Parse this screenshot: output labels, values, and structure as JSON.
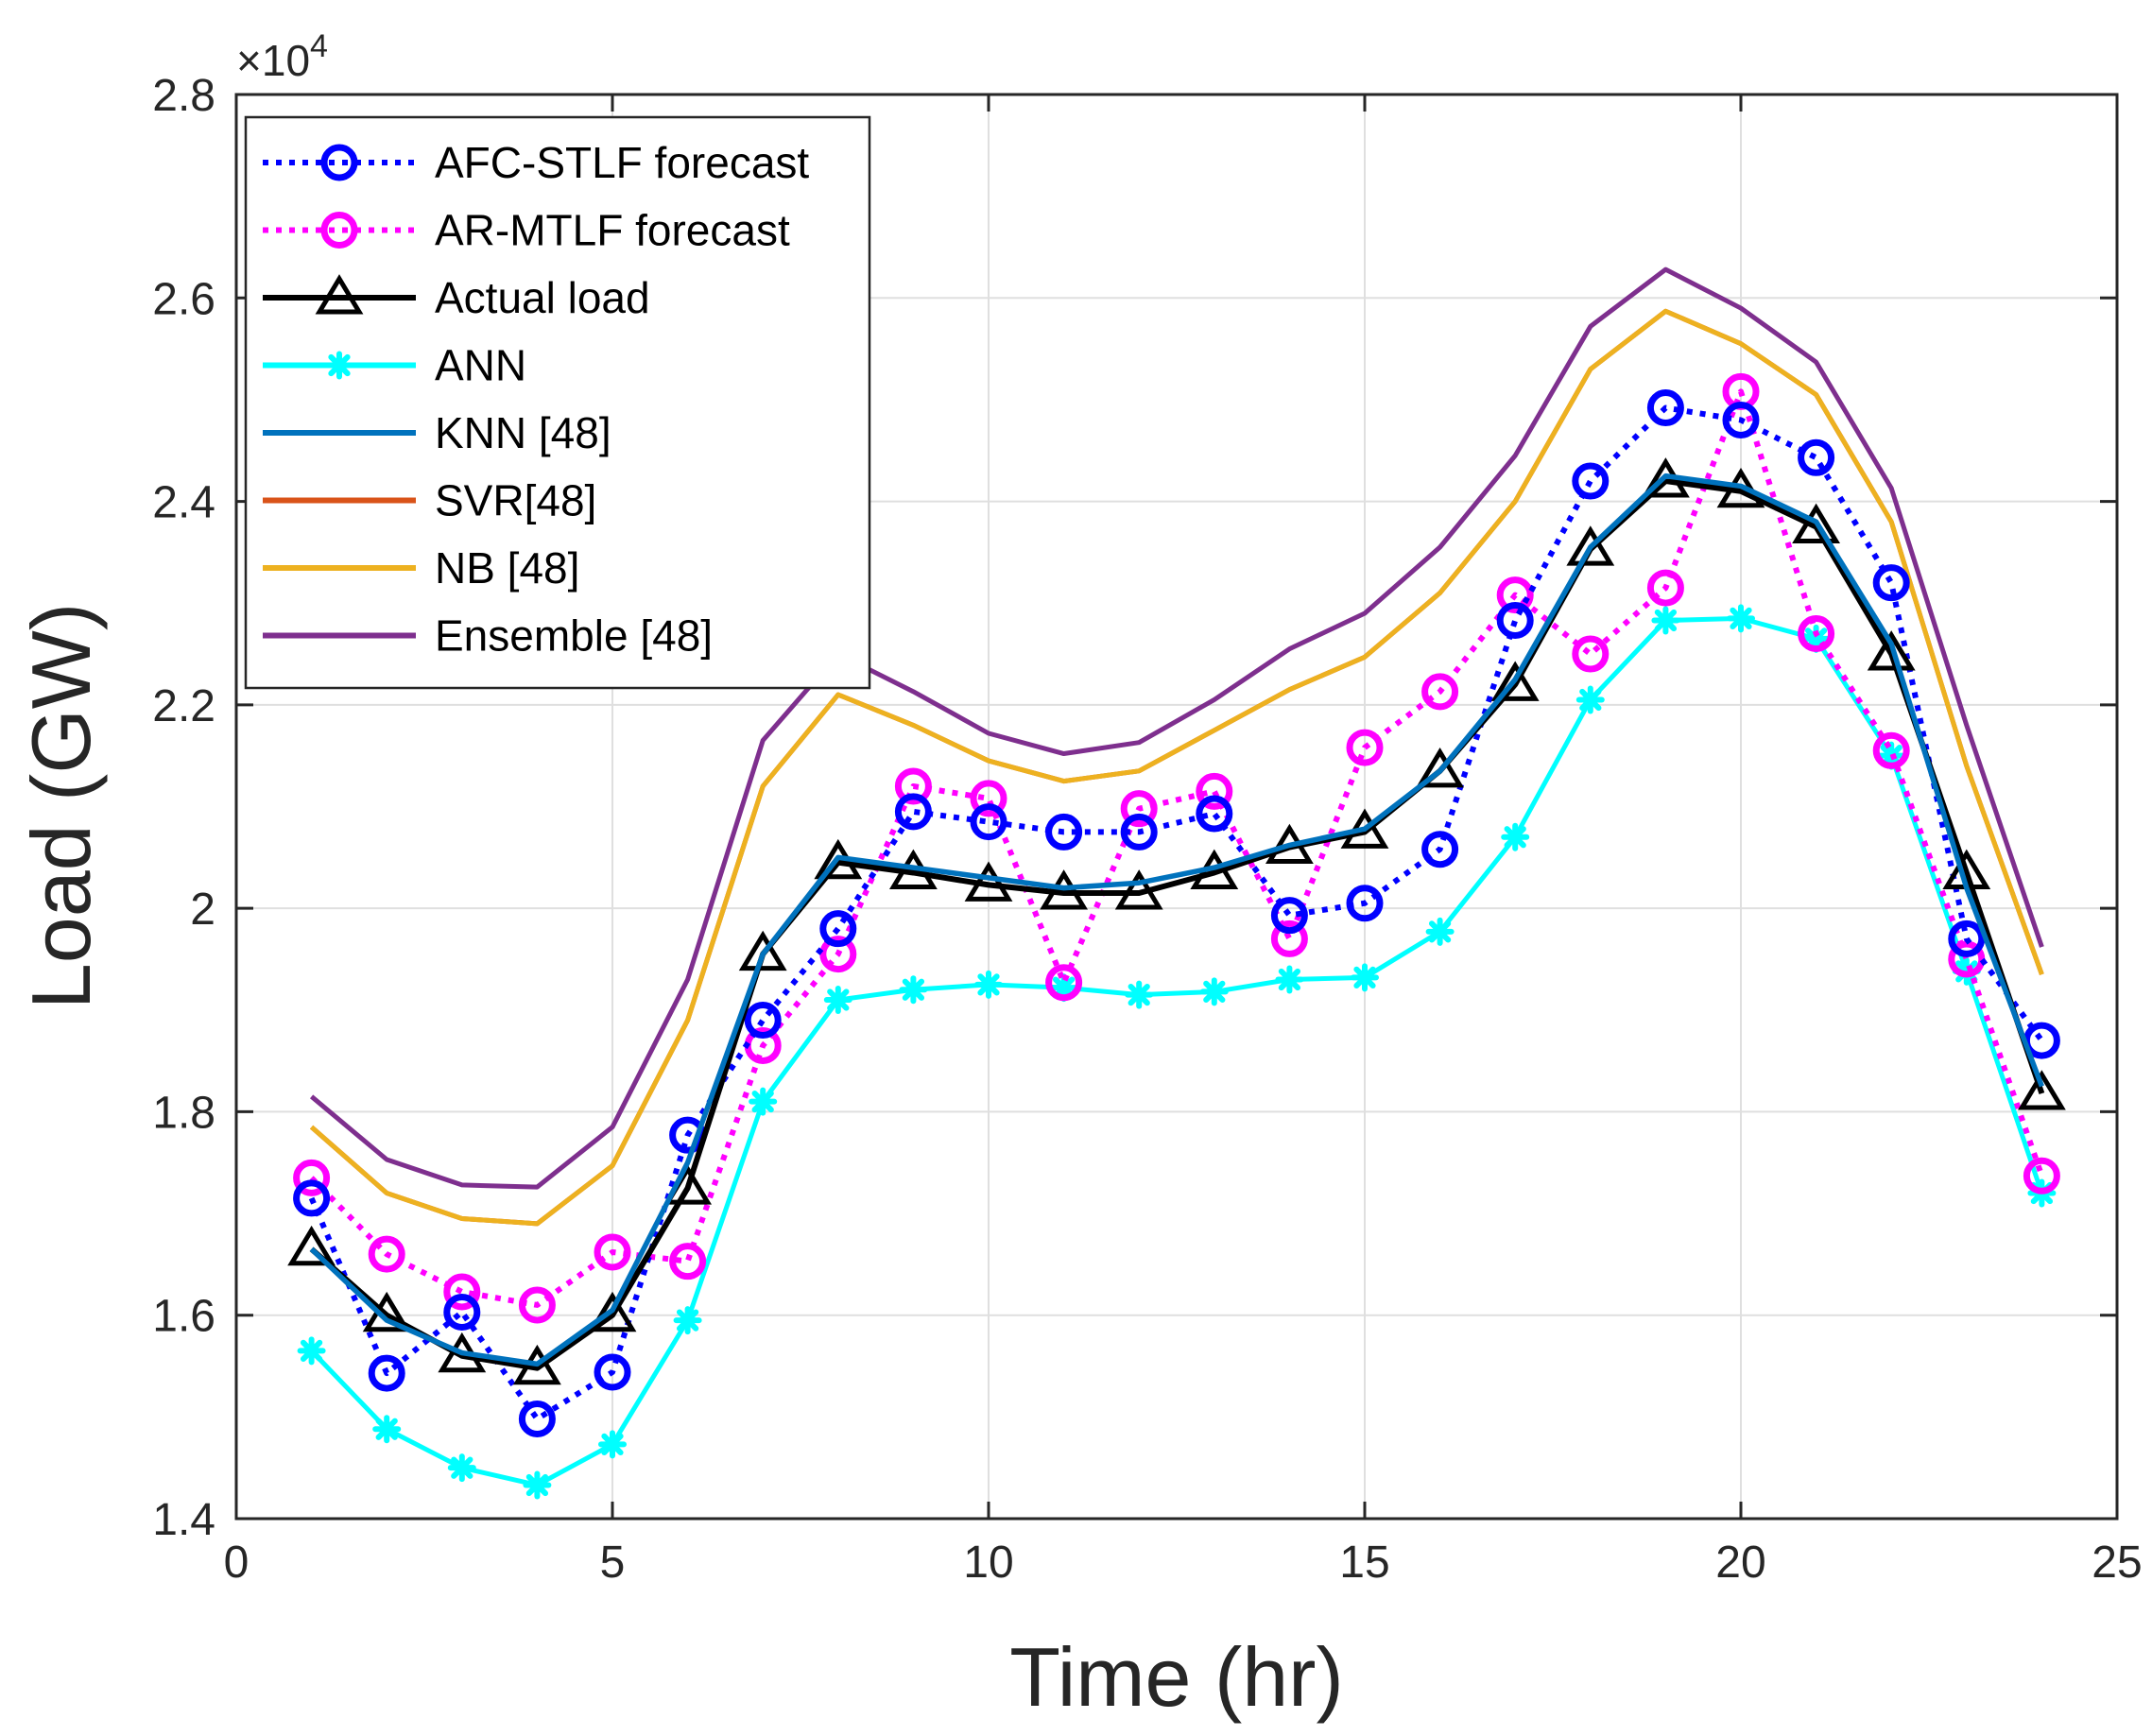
{
  "chart_data": {
    "type": "line",
    "xlabel": "Time (hr)",
    "ylabel": "Load (GW)",
    "y_exponent": "×10",
    "y_exponent_power": "4",
    "xlim": [
      0,
      25
    ],
    "ylim": [
      1.4,
      2.8
    ],
    "xticks": [
      0,
      5,
      10,
      15,
      20,
      25
    ],
    "xtick_labels": [
      "0",
      "5",
      "10",
      "15",
      "20",
      "25"
    ],
    "yticks": [
      1.4,
      1.6,
      1.8,
      2.0,
      2.2,
      2.4,
      2.6,
      2.8
    ],
    "ytick_labels": [
      "1.4",
      "1.6",
      "1.8",
      "2",
      "2.2",
      "2.4",
      "2.6",
      "2.8"
    ],
    "grid": true,
    "legend_position": "top-left",
    "x": [
      1,
      2,
      3,
      4,
      5,
      6,
      7,
      8,
      9,
      10,
      11,
      12,
      13,
      14,
      15,
      16,
      17,
      18,
      19,
      20,
      21,
      22,
      23,
      24
    ],
    "series": [
      {
        "name": "AFC-STLF forecast",
        "color": "#0000ff",
        "style": "dotted",
        "marker": "circle",
        "values": [
          1.715,
          1.543,
          1.603,
          1.498,
          1.544,
          1.777,
          1.89,
          1.98,
          2.095,
          2.085,
          2.075,
          2.075,
          2.093,
          1.993,
          2.005,
          2.058,
          2.283,
          2.42,
          2.492,
          2.48,
          2.443,
          2.32,
          1.97,
          1.87
        ]
      },
      {
        "name": "AR-MTLF forecast",
        "color": "#ff00ff",
        "style": "dotted",
        "marker": "circle",
        "values": [
          1.735,
          1.66,
          1.623,
          1.61,
          1.662,
          1.653,
          1.865,
          1.955,
          2.12,
          2.108,
          1.927,
          2.098,
          2.115,
          1.97,
          2.158,
          2.213,
          2.308,
          2.25,
          2.315,
          2.508,
          2.27,
          2.155,
          1.95,
          1.737
        ]
      },
      {
        "name": "Actual load",
        "color": "#000000",
        "style": "solid",
        "marker": "triangle",
        "values": [
          1.665,
          1.6,
          1.56,
          1.548,
          1.6,
          1.725,
          1.955,
          2.045,
          2.035,
          2.023,
          2.015,
          2.015,
          2.035,
          2.06,
          2.075,
          2.135,
          2.22,
          2.353,
          2.42,
          2.41,
          2.375,
          2.25,
          2.035,
          1.818
        ]
      },
      {
        "name": "ANN",
        "color": "#00ffff",
        "style": "solid",
        "marker": "asterisk",
        "values": [
          1.565,
          1.488,
          1.45,
          1.433,
          1.473,
          1.595,
          1.81,
          1.91,
          1.92,
          1.925,
          1.922,
          1.915,
          1.918,
          1.93,
          1.932,
          1.977,
          2.07,
          2.205,
          2.283,
          2.285,
          2.265,
          2.15,
          1.938,
          1.72
        ]
      },
      {
        "name": "KNN [48]",
        "color": "#0072bd",
        "style": "solid",
        "marker": "none",
        "values": [
          1.665,
          1.595,
          1.563,
          1.552,
          1.605,
          1.75,
          1.955,
          2.05,
          2.04,
          2.03,
          2.02,
          2.025,
          2.04,
          2.062,
          2.078,
          2.135,
          2.225,
          2.355,
          2.425,
          2.415,
          2.38,
          2.26,
          2.02,
          1.825
        ]
      },
      {
        "name": "SVR[48]",
        "color": "#d95319",
        "style": "solid",
        "marker": "none",
        "values": [
          1.785,
          1.72,
          1.695,
          1.69,
          1.747,
          1.89,
          2.12,
          2.21,
          2.18,
          2.145,
          2.125,
          2.135,
          2.175,
          2.215,
          2.247,
          2.31,
          2.4,
          2.53,
          2.587,
          2.555,
          2.505,
          2.38,
          2.14,
          1.935
        ]
      },
      {
        "name": "NB [48]",
        "color": "#edb120",
        "style": "solid",
        "marker": "none",
        "values": [
          1.785,
          1.72,
          1.695,
          1.69,
          1.747,
          1.89,
          2.12,
          2.21,
          2.18,
          2.145,
          2.125,
          2.135,
          2.175,
          2.215,
          2.247,
          2.31,
          2.4,
          2.53,
          2.587,
          2.555,
          2.505,
          2.38,
          2.14,
          1.935
        ]
      },
      {
        "name": "Ensemble [48]",
        "color": "#7e2f8e",
        "style": "solid",
        "marker": "none",
        "values": [
          1.815,
          1.753,
          1.728,
          1.726,
          1.785,
          1.93,
          2.165,
          2.25,
          2.213,
          2.172,
          2.152,
          2.163,
          2.205,
          2.255,
          2.29,
          2.355,
          2.445,
          2.572,
          2.628,
          2.59,
          2.537,
          2.413,
          2.18,
          1.962
        ]
      }
    ]
  }
}
